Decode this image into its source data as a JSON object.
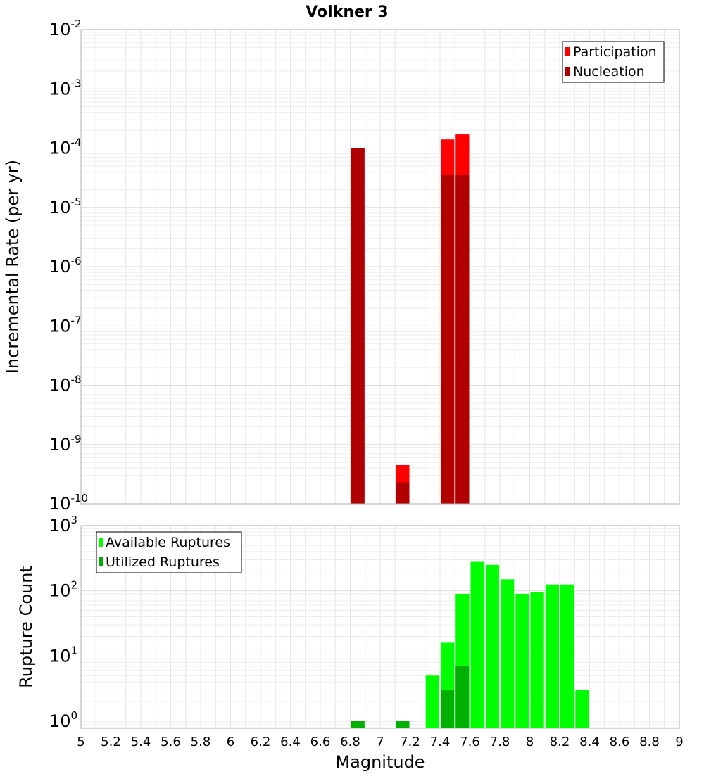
{
  "chart_data": [
    {
      "type": "bar",
      "title": "Volkner 3",
      "ylabel": "Incremental Rate (per yr)",
      "xlabel": "",
      "yscale": "log",
      "ylim": [
        1e-10,
        0.01
      ],
      "xlim": [
        5,
        9
      ],
      "grid": true,
      "legend_position": "top-right",
      "bin_width": 0.1,
      "series": [
        {
          "name": "Participation",
          "color": "#ff0000",
          "points": [
            {
              "x": 6.85,
              "y": 0.0001
            },
            {
              "x": 7.15,
              "y": 4.5e-10
            },
            {
              "x": 7.45,
              "y": 0.00014
            },
            {
              "x": 7.55,
              "y": 0.00017
            }
          ]
        },
        {
          "name": "Nucleation",
          "color": "#b00000",
          "points": [
            {
              "x": 6.85,
              "y": 0.0001
            },
            {
              "x": 7.15,
              "y": 2.3e-10
            },
            {
              "x": 7.45,
              "y": 3.5e-05
            },
            {
              "x": 7.55,
              "y": 3.5e-05
            }
          ]
        }
      ],
      "yticks": [
        {
          "base": "10",
          "exp": "-10"
        },
        {
          "base": "10",
          "exp": "-9"
        },
        {
          "base": "10",
          "exp": "-8"
        },
        {
          "base": "10",
          "exp": "-7"
        },
        {
          "base": "10",
          "exp": "-6"
        },
        {
          "base": "10",
          "exp": "-5"
        },
        {
          "base": "10",
          "exp": "-4"
        },
        {
          "base": "10",
          "exp": "-3"
        },
        {
          "base": "10",
          "exp": "-2"
        }
      ]
    },
    {
      "type": "bar",
      "title": "",
      "ylabel": "Rupture Count",
      "xlabel": "Magnitude",
      "yscale": "log",
      "ylim": [
        0.78,
        1000
      ],
      "xlim": [
        5,
        9
      ],
      "grid": true,
      "legend_position": "top-left",
      "bin_width": 0.1,
      "series": [
        {
          "name": "Available Ruptures",
          "color": "#00ff00",
          "points": [
            {
              "x": 6.85,
              "y": 1
            },
            {
              "x": 7.15,
              "y": 1
            },
            {
              "x": 7.35,
              "y": 5
            },
            {
              "x": 7.45,
              "y": 16
            },
            {
              "x": 7.55,
              "y": 90
            },
            {
              "x": 7.65,
              "y": 285
            },
            {
              "x": 7.75,
              "y": 250
            },
            {
              "x": 7.85,
              "y": 150
            },
            {
              "x": 7.95,
              "y": 90
            },
            {
              "x": 8.05,
              "y": 95
            },
            {
              "x": 8.15,
              "y": 125
            },
            {
              "x": 8.25,
              "y": 125
            },
            {
              "x": 8.35,
              "y": 3
            }
          ]
        },
        {
          "name": "Utilized Ruptures",
          "color": "#00b000",
          "points": [
            {
              "x": 6.85,
              "y": 1
            },
            {
              "x": 7.15,
              "y": 1
            },
            {
              "x": 7.45,
              "y": 3
            },
            {
              "x": 7.55,
              "y": 7
            }
          ]
        }
      ],
      "yticks": [
        {
          "base": "10",
          "exp": "0"
        },
        {
          "base": "10",
          "exp": "1"
        },
        {
          "base": "10",
          "exp": "2"
        },
        {
          "base": "10",
          "exp": "3"
        }
      ],
      "xticks": [
        "5",
        "5.2",
        "5.4",
        "5.6",
        "5.8",
        "6",
        "6.2",
        "6.4",
        "6.6",
        "6.8",
        "7",
        "7.2",
        "7.4",
        "7.6",
        "7.8",
        "8",
        "8.2",
        "8.4",
        "8.6",
        "8.8",
        "9"
      ]
    }
  ]
}
